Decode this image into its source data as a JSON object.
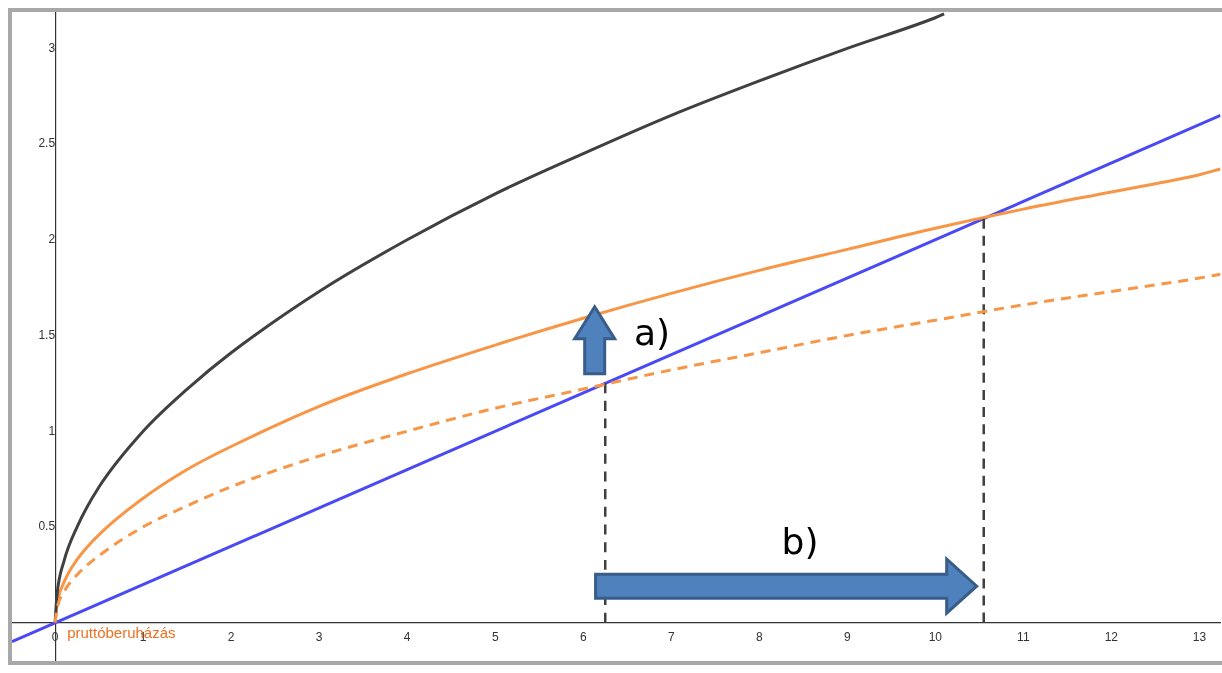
{
  "chart_data": {
    "type": "line",
    "xlim": [
      -0.49,
      13.24
    ],
    "ylim": [
      -0.21,
      3.19
    ],
    "xticks": [
      0,
      1,
      2,
      3,
      4,
      5,
      6,
      7,
      8,
      9,
      10,
      11,
      12,
      13
    ],
    "yticks": [
      0.5,
      1,
      1.5,
      2,
      2.5,
      3
    ],
    "grid": false,
    "legend": false,
    "marker": "none",
    "series": [
      {
        "color": "#404040",
        "line_style": "solid",
        "x": [
          0,
          0.02,
          0.1,
          0.25,
          0.5,
          1,
          1.5,
          2,
          3,
          4,
          5,
          6,
          7,
          8,
          9,
          10,
          10.1
        ],
        "values": [
          0,
          0.14,
          0.32,
          0.5,
          0.71,
          1,
          1.22,
          1.41,
          1.73,
          2,
          2.24,
          2.45,
          2.65,
          2.83,
          3,
          3.16,
          3.18
        ]
      },
      {
        "color": "#f79646",
        "line_style": "solid",
        "x": [
          0,
          0.02,
          0.1,
          0.25,
          0.5,
          1,
          1.5,
          2,
          3,
          4,
          5,
          6,
          7,
          8,
          9,
          10,
          11,
          12,
          13,
          13.24
        ],
        "values": [
          0,
          0.09,
          0.21,
          0.33,
          0.46,
          0.65,
          0.8,
          0.92,
          1.13,
          1.3,
          1.45,
          1.59,
          1.72,
          1.84,
          1.95,
          2.06,
          2.16,
          2.25,
          2.34,
          2.37
        ]
      },
      {
        "color": "#f79646",
        "line_style": "dashed",
        "x": [
          0,
          0.02,
          0.1,
          0.25,
          0.5,
          1,
          1.5,
          2,
          3,
          4,
          5,
          6,
          7,
          8,
          9,
          10,
          11,
          12,
          13,
          13.24
        ],
        "values": [
          0,
          0.07,
          0.16,
          0.25,
          0.35,
          0.5,
          0.61,
          0.71,
          0.87,
          1,
          1.12,
          1.22,
          1.32,
          1.41,
          1.5,
          1.58,
          1.66,
          1.73,
          1.8,
          1.82
        ]
      },
      {
        "color": "#4a4af5",
        "line_style": "solid",
        "x": [
          -0.49,
          6.25,
          10.55,
          13.24
        ],
        "values": [
          -0.1,
          1.25,
          2.11,
          2.65
        ]
      },
      {
        "color": "#404040",
        "line_style": "dashed",
        "x": [
          6.25,
          6.25
        ],
        "values": [
          0,
          1.25
        ]
      },
      {
        "color": "#404040",
        "line_style": "dashed",
        "x": [
          10.55,
          10.55
        ],
        "values": [
          0,
          2.11
        ]
      }
    ],
    "annotations": [
      {
        "text": "pruttóberuházás",
        "x": 0,
        "y": 0
      },
      "a)",
      "b)"
    ]
  }
}
